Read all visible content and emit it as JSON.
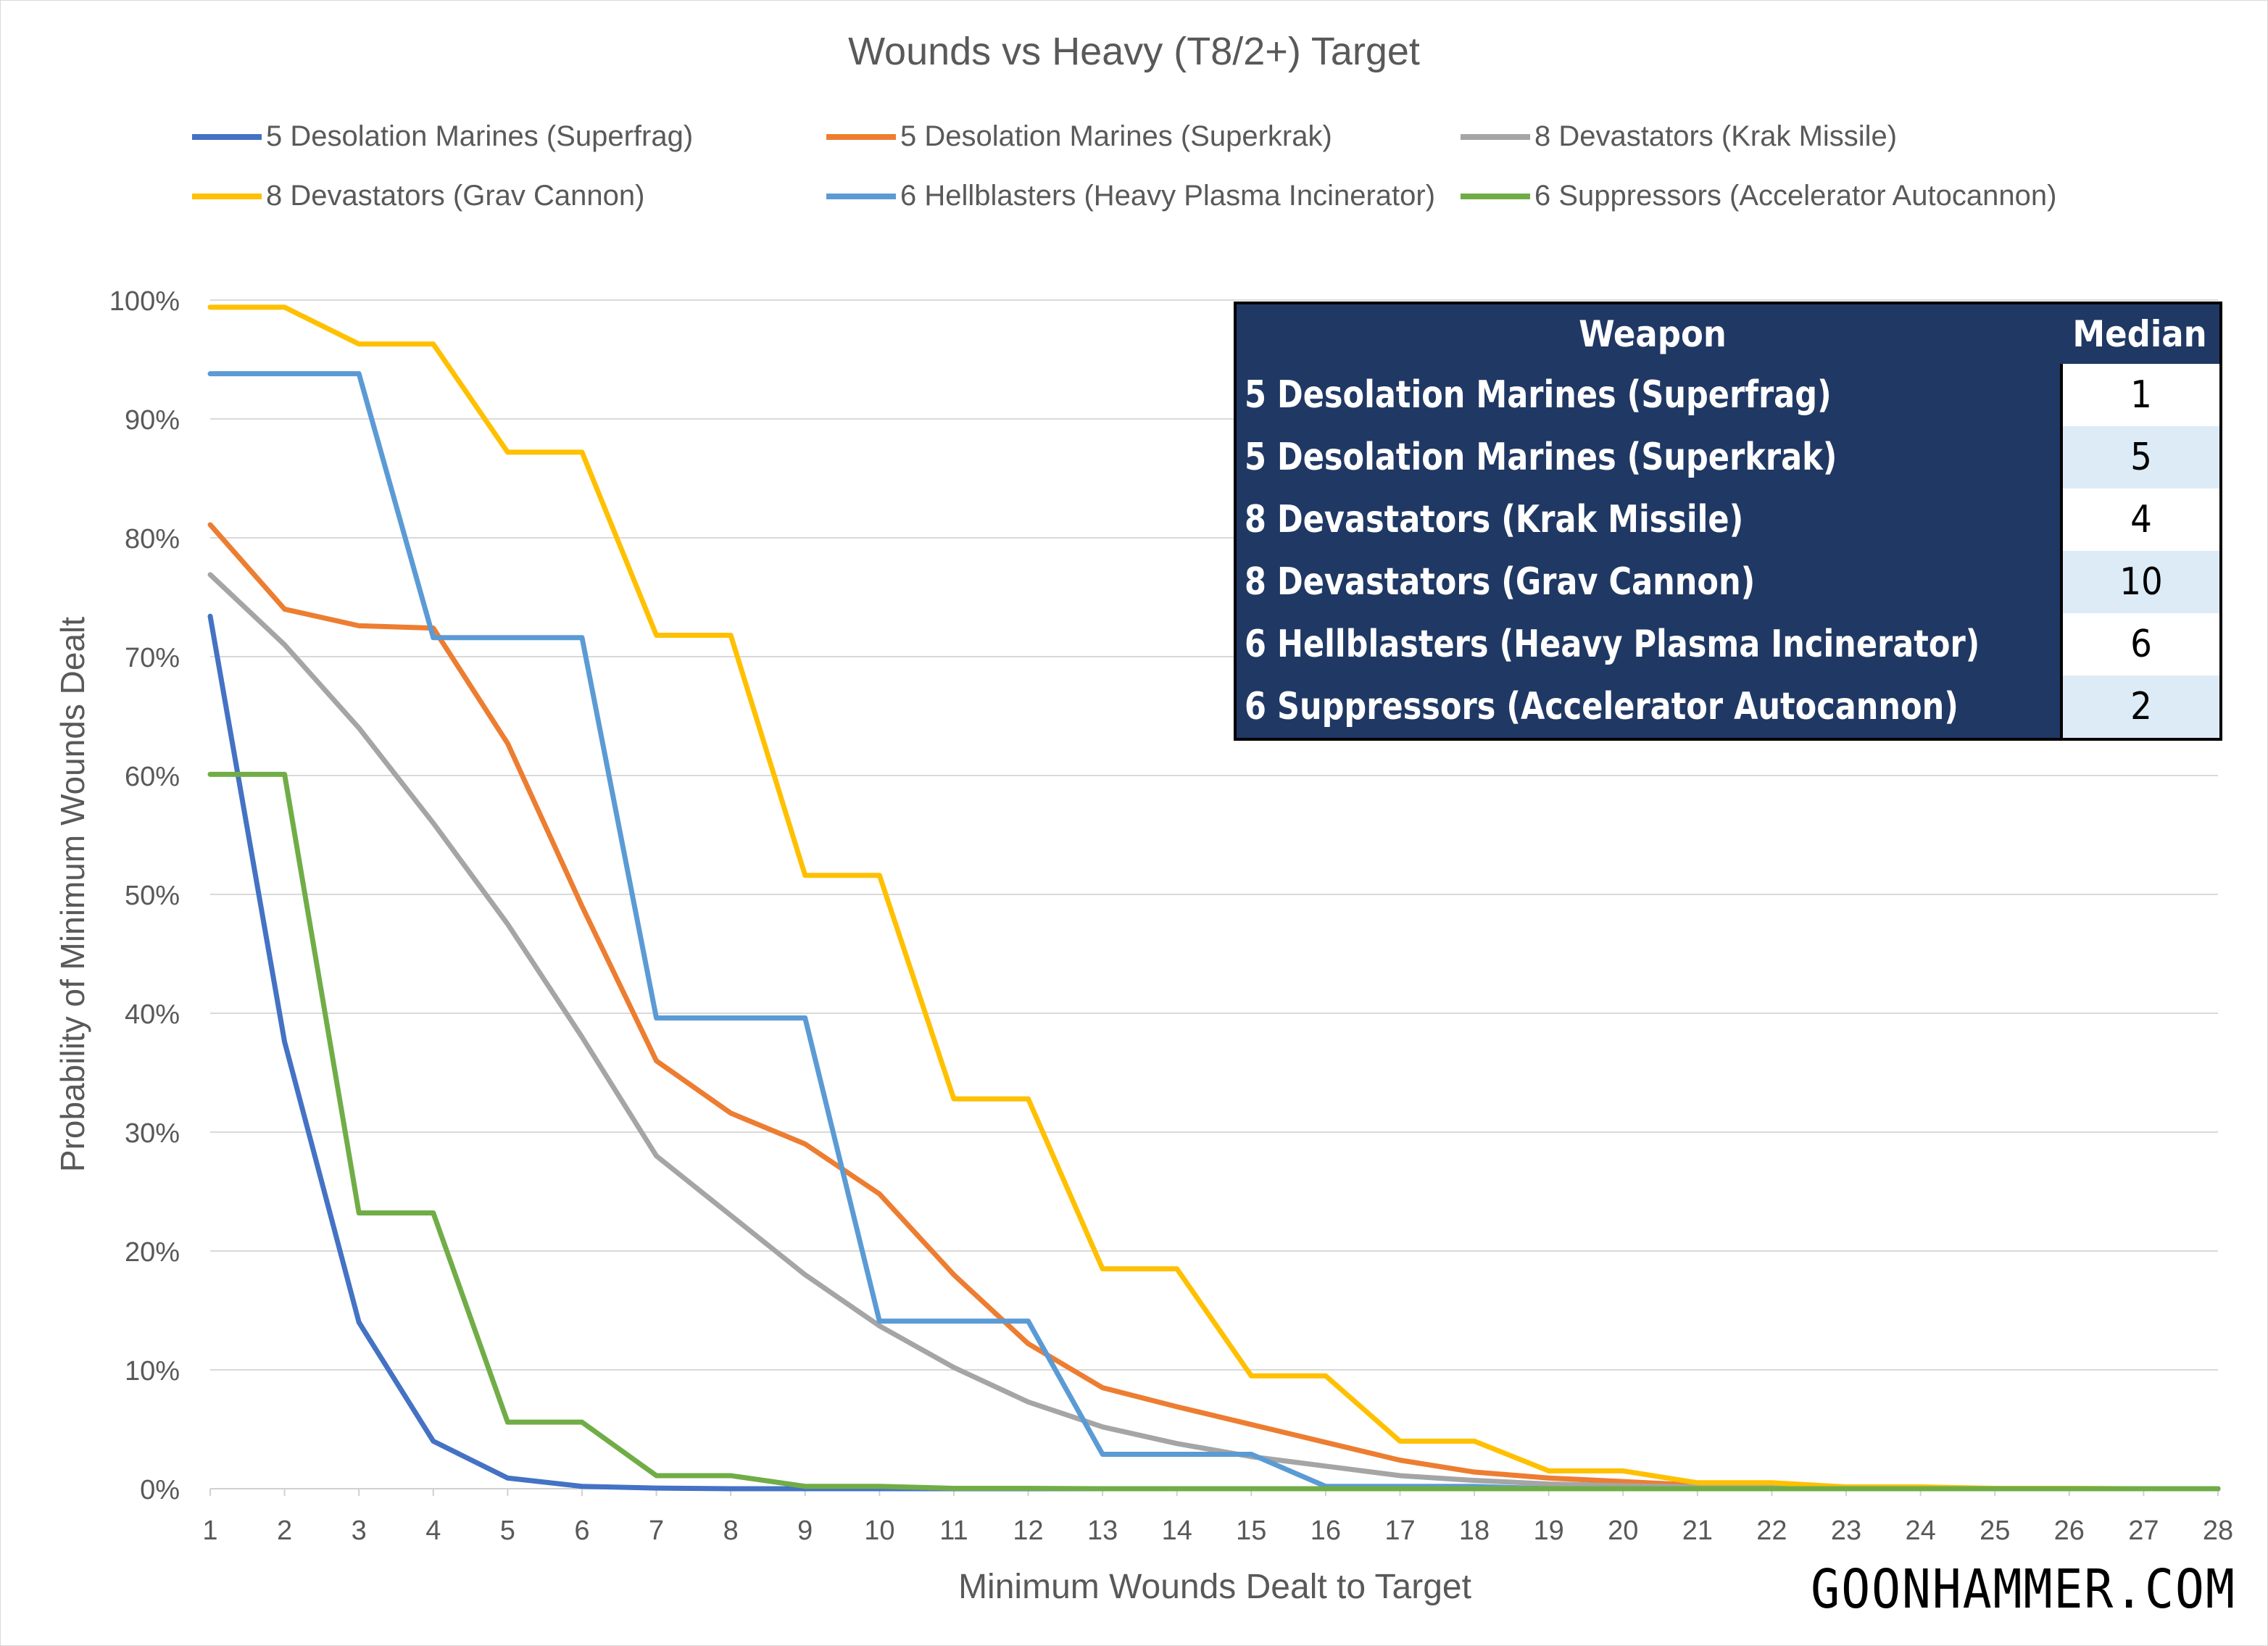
{
  "chart_data": {
    "type": "line",
    "title": "Wounds vs Heavy (T8/2+) Target",
    "xlabel": "Minimum Wounds Dealt to Target",
    "ylabel": "Probability of Minimum Wounds Dealt",
    "x": [
      1,
      2,
      3,
      4,
      5,
      6,
      7,
      8,
      9,
      10,
      11,
      12,
      13,
      14,
      15,
      16,
      17,
      18,
      19,
      20,
      21,
      22,
      23,
      24,
      25,
      26,
      27,
      28
    ],
    "ylim": [
      0,
      100
    ],
    "yticks": [
      "0%",
      "10%",
      "20%",
      "30%",
      "40%",
      "50%",
      "60%",
      "70%",
      "80%",
      "90%",
      "100%"
    ],
    "grid": true,
    "legend_position": "top",
    "series": [
      {
        "name": "5 Desolation Marines (Superfrag)",
        "color": "#4472c4",
        "values": [
          73.4,
          37.6,
          14.0,
          4.0,
          0.9,
          0.2,
          0.05,
          0,
          0,
          0,
          0,
          0,
          0,
          0,
          0,
          0,
          0,
          0,
          0,
          0,
          0,
          0,
          0,
          0,
          0,
          0,
          0,
          0
        ]
      },
      {
        "name": "5 Desolation Marines (Superkrak)",
        "color": "#ed7d31",
        "values": [
          81.1,
          74.0,
          72.6,
          72.4,
          62.7,
          49.0,
          36.0,
          31.6,
          29.0,
          24.8,
          18.0,
          12.2,
          8.5,
          6.9,
          5.4,
          3.9,
          2.4,
          1.4,
          0.9,
          0.6,
          0.3,
          0.2,
          0.1,
          0.05,
          0.02,
          0.01,
          0,
          0
        ]
      },
      {
        "name": "8 Devastators (Krak Missile)",
        "color": "#a5a5a5",
        "values": [
          76.9,
          71.0,
          64.0,
          56.0,
          47.5,
          38.0,
          28.0,
          23.0,
          18.0,
          13.7,
          10.2,
          7.3,
          5.2,
          3.8,
          2.7,
          1.9,
          1.1,
          0.7,
          0.4,
          0.25,
          0.15,
          0.08,
          0.04,
          0.02,
          0.01,
          0,
          0,
          0
        ]
      },
      {
        "name": "8 Devastators (Grav Cannon)",
        "color": "#ffc000",
        "values": [
          99.4,
          99.4,
          96.3,
          96.3,
          87.2,
          87.2,
          71.8,
          71.8,
          51.6,
          51.6,
          32.8,
          32.8,
          18.5,
          18.5,
          9.5,
          9.5,
          4.0,
          4.0,
          1.5,
          1.5,
          0.5,
          0.5,
          0.15,
          0.15,
          0.03,
          0.03,
          0,
          0
        ]
      },
      {
        "name": "6 Hellblasters (Heavy Plasma Incinerator)",
        "color": "#5b9bd5",
        "values": [
          93.8,
          93.8,
          93.8,
          71.6,
          71.6,
          71.6,
          39.6,
          39.6,
          39.6,
          14.1,
          14.1,
          14.1,
          2.9,
          2.9,
          2.9,
          0.2,
          0.2,
          0.2,
          0,
          0,
          0,
          0,
          0,
          0,
          0,
          0,
          0,
          0
        ]
      },
      {
        "name": "6 Suppressors (Accelerator Autocannon)",
        "color": "#70ad47",
        "values": [
          60.1,
          60.1,
          23.2,
          23.2,
          5.6,
          5.6,
          1.1,
          1.1,
          0.2,
          0.2,
          0.03,
          0.03,
          0,
          0,
          0,
          0,
          0,
          0,
          0,
          0,
          0,
          0,
          0,
          0,
          0,
          0,
          0,
          0
        ]
      }
    ]
  },
  "table": {
    "headers": {
      "weapon": "Weapon",
      "median": "Median"
    },
    "rows": [
      {
        "weapon": "5 Desolation Marines (Superfrag)",
        "median": "1"
      },
      {
        "weapon": "5 Desolation Marines (Superkrak)",
        "median": "5"
      },
      {
        "weapon": "8 Devastators (Krak Missile)",
        "median": "4"
      },
      {
        "weapon": "8 Devastators (Grav Cannon)",
        "median": "10"
      },
      {
        "weapon": "6 Hellblasters (Heavy Plasma Incinerator)",
        "median": "6"
      },
      {
        "weapon": "6 Suppressors (Accelerator Autocannon)",
        "median": "2"
      }
    ]
  },
  "brand": "GOONHAMMER.COM"
}
